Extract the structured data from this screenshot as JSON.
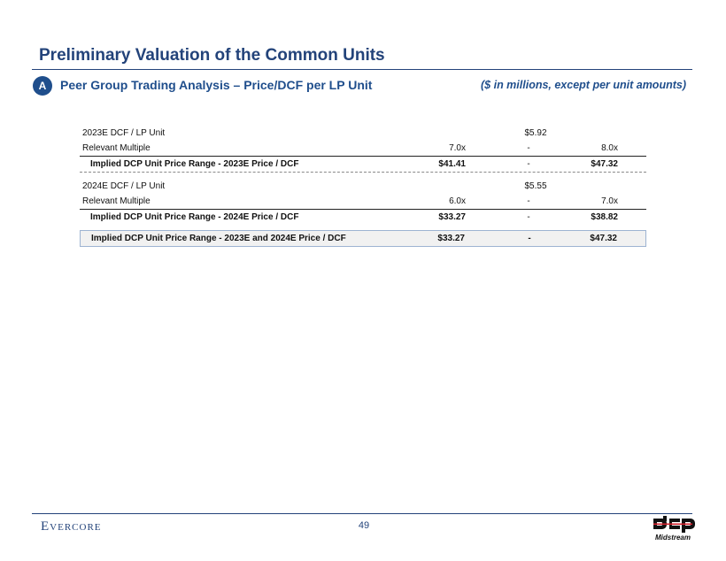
{
  "header": {
    "title": "Preliminary Valuation of the Common Units",
    "badge": "A",
    "subtitle": "Peer Group Trading Analysis – Price/DCF per LP Unit",
    "units_note": "($ in millions, except per unit amounts)"
  },
  "table": {
    "section_2023": {
      "dcf_label": "2023E DCF / LP Unit",
      "dcf_value": "$5.92",
      "multiple_label": "Relevant Multiple",
      "multiple_low": "7.0x",
      "multiple_sep": "-",
      "multiple_high": "8.0x",
      "implied_label": "Implied DCP Unit Price Range - 2023E Price / DCF",
      "implied_low": "$41.41",
      "implied_sep": "-",
      "implied_high": "$47.32"
    },
    "section_2024": {
      "dcf_label": "2024E DCF / LP Unit",
      "dcf_value": "$5.55",
      "multiple_label": "Relevant Multiple",
      "multiple_low": "6.0x",
      "multiple_sep": "-",
      "multiple_high": "7.0x",
      "implied_label": "Implied DCP Unit Price Range - 2024E Price / DCF",
      "implied_low": "$33.27",
      "implied_sep": "-",
      "implied_high": "$38.82"
    },
    "summary": {
      "label": "Implied DCP Unit Price Range - 2023E and 2024E Price / DCF",
      "low": "$33.27",
      "sep": "-",
      "high": "$47.32"
    }
  },
  "footer": {
    "brand": "Evercore",
    "page_number": "49",
    "logo_text": "Midstream",
    "logo_letters": "dcp"
  },
  "colors": {
    "title": "#23437a",
    "accent": "#1f4e8c",
    "logo_red": "#d4202c"
  }
}
